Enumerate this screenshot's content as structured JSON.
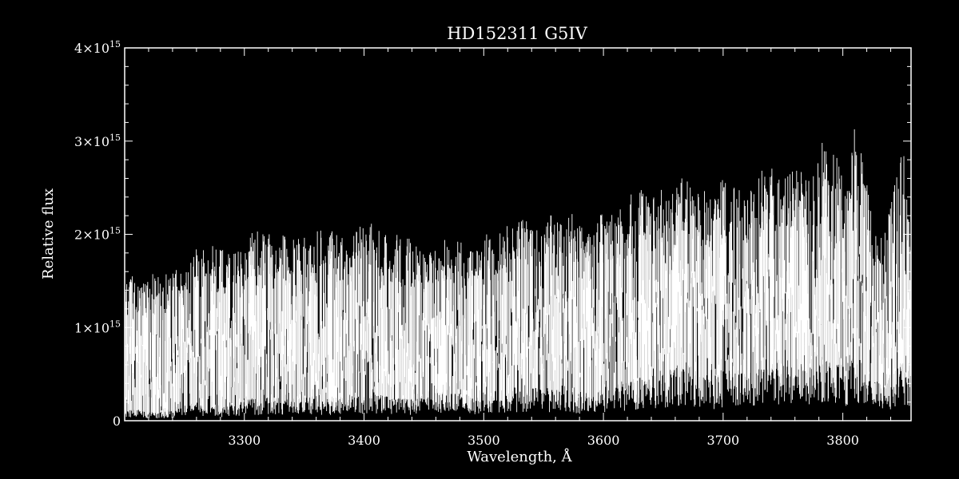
{
  "chart_data": {
    "type": "line",
    "title": "HD152311   G5IV",
    "xlabel": "Wavelength, Å",
    "ylabel": "Relative flux",
    "xlim": [
      3200,
      3857
    ],
    "ylim": [
      0,
      4000000000000000.0
    ],
    "grid": false,
    "x_ticks": [
      {
        "value": 3300,
        "label": "3300"
      },
      {
        "value": 3400,
        "label": "3400"
      },
      {
        "value": 3500,
        "label": "3500"
      },
      {
        "value": 3600,
        "label": "3600"
      },
      {
        "value": 3700,
        "label": "3700"
      },
      {
        "value": 3800,
        "label": "3800"
      }
    ],
    "y_ticks": [
      {
        "value": 0,
        "mantissa": "0",
        "exponent": ""
      },
      {
        "value": 1000000000000000.0,
        "mantissa": "1×10",
        "exponent": "15"
      },
      {
        "value": 2000000000000000.0,
        "mantissa": "2×10",
        "exponent": "15"
      },
      {
        "value": 3000000000000000.0,
        "mantissa": "3×10",
        "exponent": "15"
      },
      {
        "value": 4000000000000000.0,
        "mantissa": "4×10",
        "exponent": "15"
      }
    ],
    "series": [
      {
        "color": "#ffffff",
        "x": [
          3200,
          3210,
          3220,
          3230,
          3240,
          3250,
          3260,
          3270,
          3280,
          3290,
          3300,
          3310,
          3320,
          3330,
          3340,
          3350,
          3360,
          3370,
          3380,
          3390,
          3400,
          3410,
          3420,
          3430,
          3440,
          3450,
          3460,
          3470,
          3480,
          3490,
          3500,
          3510,
          3520,
          3530,
          3540,
          3550,
          3560,
          3570,
          3580,
          3590,
          3600,
          3610,
          3620,
          3630,
          3640,
          3650,
          3660,
          3670,
          3680,
          3690,
          3700,
          3710,
          3720,
          3730,
          3740,
          3750,
          3760,
          3770,
          3780,
          3790,
          3800,
          3810,
          3820,
          3830,
          3840,
          3850,
          3857
        ],
        "upper": [
          1650000000000000.0,
          1500000000000000.0,
          1600000000000000.0,
          1550000000000000.0,
          1650000000000000.0,
          1600000000000000.0,
          1850000000000000.0,
          1900000000000000.0,
          1850000000000000.0,
          1800000000000000.0,
          1950000000000000.0,
          2050000000000000.0,
          2000000000000000.0,
          2000000000000000.0,
          1950000000000000.0,
          2000000000000000.0,
          2050000000000000.0,
          2050000000000000.0,
          2000000000000000.0,
          2000000000000000.0,
          2150000000000000.0,
          2100000000000000.0,
          2050000000000000.0,
          2000000000000000.0,
          1950000000000000.0,
          1800000000000000.0,
          1950000000000000.0,
          2000000000000000.0,
          1950000000000000.0,
          1900000000000000.0,
          2000000000000000.0,
          2100000000000000.0,
          2100000000000000.0,
          2200000000000000.0,
          2150000000000000.0,
          2250000000000000.0,
          2200000000000000.0,
          2250000000000000.0,
          2200000000000000.0,
          1950000000000000.0,
          2300000000000000.0,
          2250000000000000.0,
          2400000000000000.0,
          2500000000000000.0,
          2450000000000000.0,
          2500000000000000.0,
          2600000000000000.0,
          2600000000000000.0,
          2500000000000000.0,
          2450000000000000.0,
          2600000000000000.0,
          2550000000000000.0,
          2600000000000000.0,
          2700000000000000.0,
          2750000000000000.0,
          2650000000000000.0,
          2700000000000000.0,
          2650000000000000.0,
          3100000000000000.0,
          3050000000000000.0,
          2700000000000000.0,
          3250000000000000.0,
          2600000000000000.0,
          1900000000000000.0,
          2300000000000000.0,
          3050000000000000.0,
          1900000000000000.0
        ],
        "continuum": [
          1200000000000000.0,
          1100000000000000.0,
          1150000000000000.0,
          1150000000000000.0,
          1200000000000000.0,
          1300000000000000.0,
          1350000000000000.0,
          1400000000000000.0,
          1350000000000000.0,
          1350000000000000.0,
          1450000000000000.0,
          1500000000000000.0,
          1500000000000000.0,
          1450000000000000.0,
          1450000000000000.0,
          1500000000000000.0,
          1500000000000000.0,
          1500000000000000.0,
          1450000000000000.0,
          1450000000000000.0,
          1550000000000000.0,
          1550000000000000.0,
          1500000000000000.0,
          1450000000000000.0,
          1400000000000000.0,
          1350000000000000.0,
          1450000000000000.0,
          1500000000000000.0,
          1450000000000000.0,
          1400000000000000.0,
          1500000000000000.0,
          1550000000000000.0,
          1550000000000000.0,
          1600000000000000.0,
          1600000000000000.0,
          1650000000000000.0,
          1600000000000000.0,
          1650000000000000.0,
          1600000000000000.0,
          1450000000000000.0,
          1700000000000000.0,
          1650000000000000.0,
          1750000000000000.0,
          1800000000000000.0,
          1800000000000000.0,
          1850000000000000.0,
          1900000000000000.0,
          1900000000000000.0,
          1850000000000000.0,
          1800000000000000.0,
          1900000000000000.0,
          1850000000000000.0,
          1900000000000000.0,
          1950000000000000.0,
          2000000000000000.0,
          1900000000000000.0,
          1950000000000000.0,
          1900000000000000.0,
          2200000000000000.0,
          2150000000000000.0,
          1950000000000000.0,
          2300000000000000.0,
          1900000000000000.0,
          1400000000000000.0,
          1700000000000000.0,
          2100000000000000.0,
          1400000000000000.0
        ],
        "floor": [
          100000000000000.0,
          100000000000000.0,
          80000000000000.0,
          80000000000000.0,
          100000000000000.0,
          120000000000000.0,
          150000000000000.0,
          150000000000000.0,
          120000000000000.0,
          150000000000000.0,
          200000000000000.0,
          200000000000000.0,
          220000000000000.0,
          200000000000000.0,
          200000000000000.0,
          220000000000000.0,
          220000000000000.0,
          200000000000000.0,
          220000000000000.0,
          200000000000000.0,
          250000000000000.0,
          250000000000000.0,
          220000000000000.0,
          200000000000000.0,
          200000000000000.0,
          220000000000000.0,
          250000000000000.0,
          280000000000000.0,
          250000000000000.0,
          220000000000000.0,
          250000000000000.0,
          280000000000000.0,
          280000000000000.0,
          300000000000000.0,
          300000000000000.0,
          300000000000000.0,
          280000000000000.0,
          300000000000000.0,
          250000000000000.0,
          220000000000000.0,
          300000000000000.0,
          320000000000000.0,
          350000000000000.0,
          400000000000000.0,
          400000000000000.0,
          450000000000000.0,
          500000000000000.0,
          500000000000000.0,
          450000000000000.0,
          400000000000000.0,
          450000000000000.0,
          450000000000000.0,
          450000000000000.0,
          500000000000000.0,
          550000000000000.0,
          500000000000000.0,
          500000000000000.0,
          550000000000000.0,
          600000000000000.0,
          550000000000000.0,
          500000000000000.0,
          600000000000000.0,
          500000000000000.0,
          350000000000000.0,
          400000000000000.0,
          550000000000000.0,
          400000000000000.0
        ]
      }
    ]
  }
}
